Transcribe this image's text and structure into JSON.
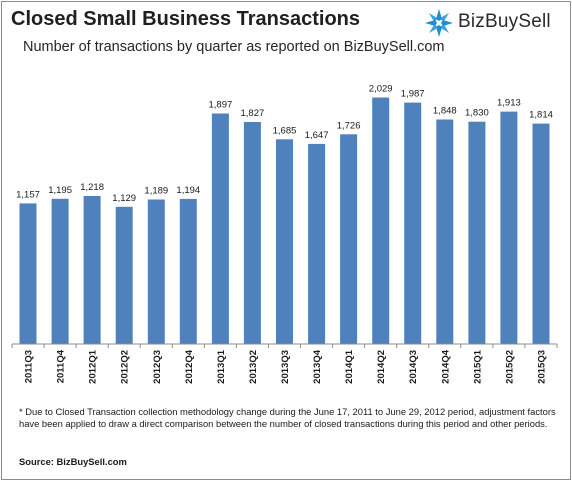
{
  "header": {
    "title": "Closed Small Business Transactions",
    "subtitle": "Number of transactions by quarter as reported on BizBuySell.com"
  },
  "logo": {
    "text": "BizBuySell",
    "icon": "bizbuysell-star-logo-icon",
    "color": "#1a8fd6"
  },
  "colors": {
    "bar": "#4f81bd",
    "axis": "#8c8c8c"
  },
  "chart_data": {
    "type": "bar",
    "title": "Closed Small Business Transactions",
    "subtitle": "Number of transactions by quarter as reported on BizBuySell.com",
    "xlabel": "",
    "ylabel": "",
    "categories": [
      "2011Q3",
      "2011Q4",
      "2012Q1",
      "2012Q2",
      "2012Q3",
      "2012Q4",
      "2013Q1",
      "2013Q2",
      "2013Q3",
      "2013Q4",
      "2014Q1",
      "2014Q2",
      "2014Q3",
      "2014Q4",
      "2015Q1",
      "2015Q2",
      "2015Q3"
    ],
    "values": [
      1157,
      1195,
      1218,
      1129,
      1189,
      1194,
      1897,
      1827,
      1685,
      1647,
      1726,
      2029,
      1987,
      1848,
      1830,
      1913,
      1814
    ],
    "value_labels": [
      "1,157",
      "1,195",
      "1,218",
      "1,129",
      "1,189",
      "1,194",
      "1,897",
      "1,827",
      "1,685",
      "1,647",
      "1,726",
      "2,029",
      "1,987",
      "1,848",
      "1,830",
      "1,913",
      "1,814"
    ],
    "ylim": [
      0,
      2200
    ],
    "grid": false,
    "legend": "none",
    "data_labels": "above"
  },
  "footnote": "* Due to Closed Transaction collection methodology change during the June 17, 2011 to June 29, 2012 period, adjustment factors have been applied to draw a direct comparison between the number of closed transactions during this period and other periods.",
  "source": "Source: BizBuySell.com"
}
